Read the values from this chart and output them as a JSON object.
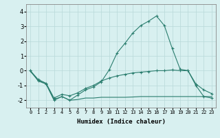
{
  "xlabel": "Humidex (Indice chaleur)",
  "x": [
    0,
    1,
    2,
    3,
    4,
    5,
    6,
    7,
    8,
    9,
    10,
    11,
    12,
    13,
    14,
    15,
    16,
    17,
    18,
    19,
    20,
    21,
    22,
    23
  ],
  "line1": [
    0.0,
    -0.7,
    -0.9,
    -2.0,
    -1.75,
    -2.0,
    -1.65,
    -1.3,
    -1.1,
    -0.75,
    0.05,
    1.2,
    1.85,
    2.55,
    3.05,
    3.35,
    3.7,
    3.05,
    1.5,
    0.1,
    0.0,
    -1.0,
    -1.75,
    -1.85
  ],
  "line2": [
    0.0,
    -0.6,
    -0.85,
    -1.85,
    -1.6,
    -1.7,
    -1.5,
    -1.2,
    -1.0,
    -0.7,
    -0.5,
    -0.35,
    -0.25,
    -0.15,
    -0.1,
    -0.05,
    0.0,
    0.0,
    0.05,
    0.0,
    0.0,
    -0.9,
    -1.3,
    -1.55
  ],
  "line3": [
    -0.05,
    -0.65,
    -0.9,
    -1.95,
    -1.75,
    -2.0,
    -1.95,
    -1.85,
    -1.85,
    -1.8,
    -1.8,
    -1.8,
    -1.8,
    -1.78,
    -1.75,
    -1.75,
    -1.75,
    -1.75,
    -1.75,
    -1.75,
    -1.75,
    -1.75,
    -1.75,
    -1.75
  ],
  "line_color": "#2a7d6e",
  "bg_color": "#d8f0f0",
  "grid_color": "#b8d8d8",
  "ylim": [
    -2.5,
    4.5
  ],
  "yticks": [
    -2,
    -1,
    0,
    1,
    2,
    3,
    4
  ],
  "marker": "+"
}
